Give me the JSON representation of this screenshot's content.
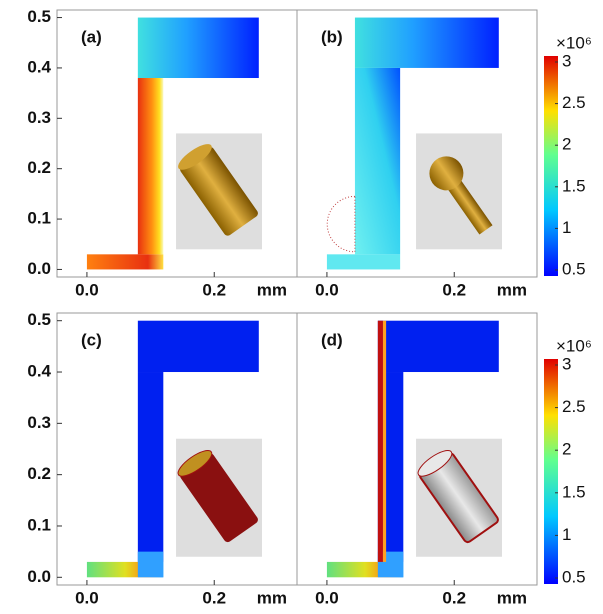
{
  "chart_data": [
    {
      "type": "field",
      "label": "(a)",
      "xlim": [
        -0.047,
        0.33
      ],
      "ylim": [
        -0.015,
        0.515
      ],
      "xticks": [
        {
          "value": 0,
          "label": "0.0"
        },
        0.2
      ],
      "yticks": [
        {
          "value": 0,
          "label": "0.0"
        },
        0.1,
        0.2,
        0.3,
        0.4,
        0.5
      ],
      "x_unit": "mm"
    },
    {
      "type": "field",
      "label": "(b)",
      "xlim": [
        -0.047,
        0.33
      ],
      "ylim": [
        -0.015,
        0.515
      ],
      "xticks": [
        {
          "value": 0,
          "label": "0.0"
        },
        0.2
      ],
      "x_unit": "mm",
      "colorbar": {
        "multiplier": "×10⁶",
        "lim": [
          0.5,
          3
        ],
        "ticks": [
          0.5,
          1,
          1.5,
          2,
          2.5,
          3
        ]
      }
    },
    {
      "type": "field",
      "label": "(c)",
      "xlim": [
        -0.047,
        0.33
      ],
      "ylim": [
        -0.015,
        0.515
      ],
      "xticks": [
        {
          "value": 0,
          "label": "0.0"
        },
        0.2
      ],
      "yticks": [
        {
          "value": 0,
          "label": "0.0"
        },
        0.1,
        0.2,
        0.3,
        0.4,
        0.5
      ],
      "x_unit": "mm"
    },
    {
      "type": "field",
      "label": "(d)",
      "xlim": [
        -0.047,
        0.33
      ],
      "ylim": [
        -0.015,
        0.515
      ],
      "xticks": [
        {
          "value": 0,
          "label": "0.0"
        },
        0.2
      ],
      "x_unit": "mm",
      "colorbar": {
        "multiplier": "×10⁶",
        "lim": [
          0.5,
          3
        ],
        "ticks": [
          0.5,
          1,
          1.5,
          2,
          2.5,
          3
        ]
      }
    }
  ]
}
